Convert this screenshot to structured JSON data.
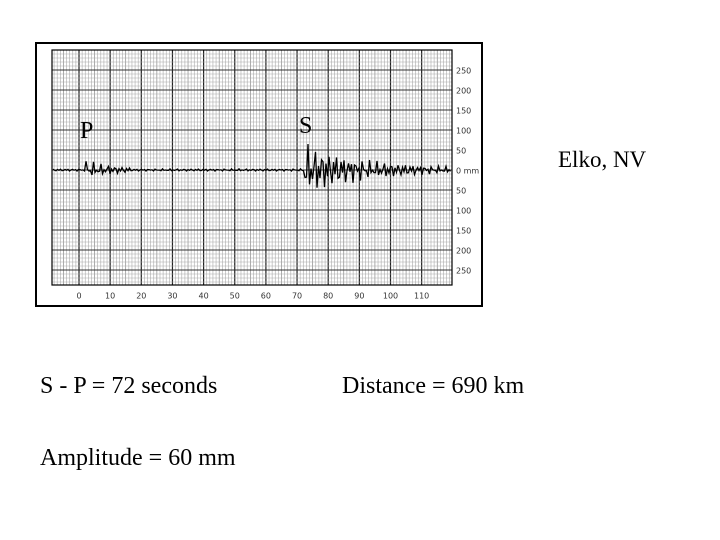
{
  "seismogram": {
    "x_labels": [
      0,
      10,
      20,
      30,
      40,
      50,
      60,
      70,
      80,
      90,
      100,
      110
    ],
    "y_labels": [
      250,
      200,
      150,
      100,
      50,
      "0 mm",
      50,
      100,
      150,
      200,
      250
    ],
    "p_label": "P",
    "s_label": "S"
  },
  "station": "Elko, NV",
  "results": {
    "s_minus_p": "S - P = 72 seconds",
    "distance": "Distance = 690 km",
    "amplitude": "Amplitude = 60 mm"
  }
}
